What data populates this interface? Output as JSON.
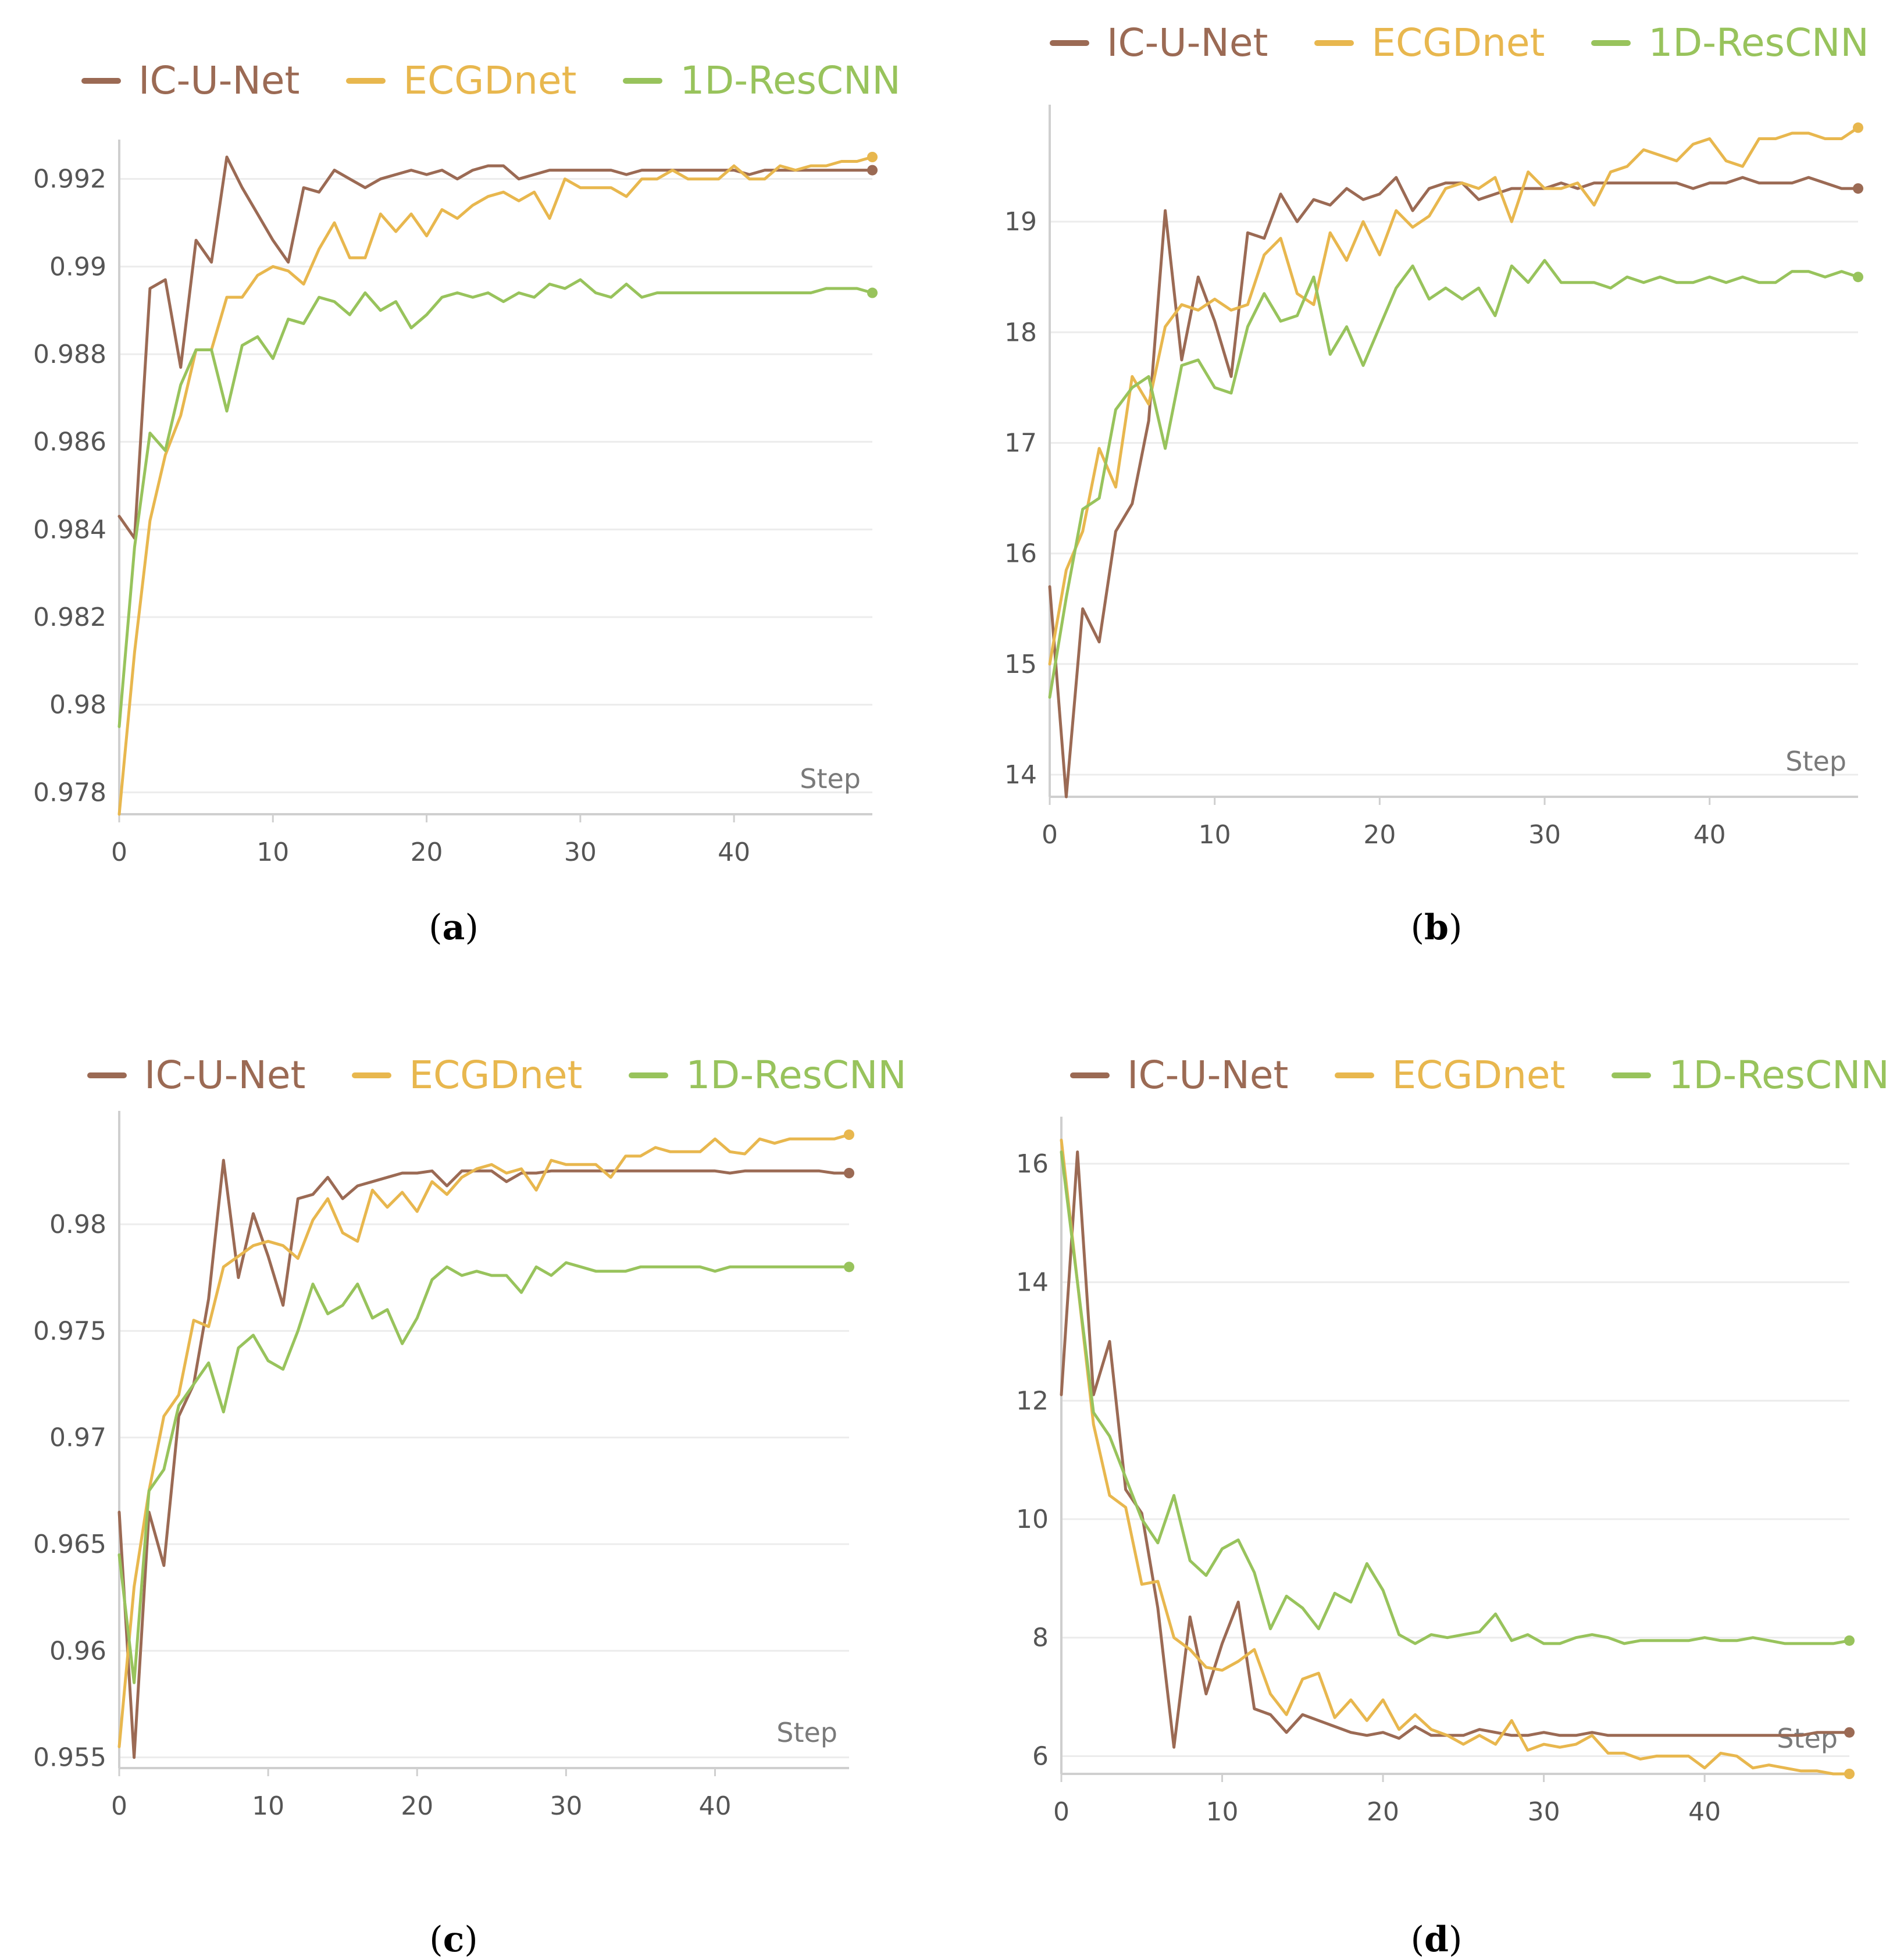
{
  "colors": {
    "ic_u_net": "#9b6a54",
    "ecgdnet": "#e8b74e",
    "resccn": "#98c35c",
    "grid": "#ececec",
    "axis": "#cfcfcf"
  },
  "chart_data": [
    {
      "id": "a",
      "caption": "a",
      "type": "line",
      "title": "",
      "xlabel": "Step",
      "ylabel": "",
      "xlim": [
        0,
        49
      ],
      "ylim": [
        0.9775,
        0.9925
      ],
      "xticks": [
        "0",
        "10",
        "20",
        "30",
        "40"
      ],
      "yticks": [
        "0.978",
        "0.98",
        "0.982",
        "0.984",
        "0.986",
        "0.988",
        "0.99",
        "0.992"
      ],
      "x": [
        0,
        1,
        2,
        3,
        4,
        5,
        6,
        7,
        8,
        9,
        10,
        11,
        12,
        13,
        14,
        15,
        16,
        17,
        18,
        19,
        20,
        21,
        22,
        23,
        24,
        25,
        26,
        27,
        28,
        29,
        30,
        31,
        32,
        33,
        34,
        35,
        36,
        37,
        38,
        39,
        40,
        41,
        42,
        43,
        44,
        45,
        46,
        47,
        48,
        49
      ],
      "series": [
        {
          "name": "IC-U-Net",
          "color_key": "ic_u_net",
          "values": [
            0.9843,
            0.9838,
            0.9895,
            0.9897,
            0.9877,
            0.9906,
            0.9901,
            0.9925,
            0.9918,
            0.9912,
            0.9906,
            0.9901,
            0.9918,
            0.9917,
            0.9922,
            0.992,
            0.9918,
            0.992,
            0.9921,
            0.9922,
            0.9921,
            0.9922,
            0.992,
            0.9922,
            0.9923,
            0.9923,
            0.992,
            0.9921,
            0.9922,
            0.9922,
            0.9922,
            0.9922,
            0.9922,
            0.9921,
            0.9922,
            0.9922,
            0.9922,
            0.9922,
            0.9922,
            0.9922,
            0.9922,
            0.9921,
            0.9922,
            0.9922,
            0.9922,
            0.9922,
            0.9922,
            0.9922,
            0.9922,
            0.9922
          ]
        },
        {
          "name": "ECGDnet",
          "color_key": "ecgdnet",
          "values": [
            0.9775,
            0.9812,
            0.9842,
            0.9857,
            0.9866,
            0.9881,
            0.9881,
            0.9893,
            0.9893,
            0.9898,
            0.99,
            0.9899,
            0.9896,
            0.9904,
            0.991,
            0.9902,
            0.9902,
            0.9912,
            0.9908,
            0.9912,
            0.9907,
            0.9913,
            0.9911,
            0.9914,
            0.9916,
            0.9917,
            0.9915,
            0.9917,
            0.9911,
            0.992,
            0.9918,
            0.9918,
            0.9918,
            0.9916,
            0.992,
            0.992,
            0.9922,
            0.992,
            0.992,
            0.992,
            0.9923,
            0.992,
            0.992,
            0.9923,
            0.9922,
            0.9923,
            0.9923,
            0.9924,
            0.9924,
            0.9925
          ]
        },
        {
          "name": "1D-ResCNN",
          "color_key": "resccn",
          "values": [
            0.9795,
            0.9836,
            0.9862,
            0.9858,
            0.9873,
            0.9881,
            0.9881,
            0.9867,
            0.9882,
            0.9884,
            0.9879,
            0.9888,
            0.9887,
            0.9893,
            0.9892,
            0.9889,
            0.9894,
            0.989,
            0.9892,
            0.9886,
            0.9889,
            0.9893,
            0.9894,
            0.9893,
            0.9894,
            0.9892,
            0.9894,
            0.9893,
            0.9896,
            0.9895,
            0.9897,
            0.9894,
            0.9893,
            0.9896,
            0.9893,
            0.9894,
            0.9894,
            0.9894,
            0.9894,
            0.9894,
            0.9894,
            0.9894,
            0.9894,
            0.9894,
            0.9894,
            0.9894,
            0.9895,
            0.9895,
            0.9895,
            0.9894
          ]
        }
      ]
    },
    {
      "id": "b",
      "caption": "b",
      "type": "line",
      "title": "",
      "xlabel": "Step",
      "ylabel": "",
      "xlim": [
        0,
        49
      ],
      "ylim": [
        13.8,
        19.9
      ],
      "xticks": [
        "0",
        "10",
        "20",
        "30",
        "40"
      ],
      "yticks": [
        "14",
        "15",
        "16",
        "17",
        "18",
        "19"
      ],
      "x": [
        0,
        1,
        2,
        3,
        4,
        5,
        6,
        7,
        8,
        9,
        10,
        11,
        12,
        13,
        14,
        15,
        16,
        17,
        18,
        19,
        20,
        21,
        22,
        23,
        24,
        25,
        26,
        27,
        28,
        29,
        30,
        31,
        32,
        33,
        34,
        35,
        36,
        37,
        38,
        39,
        40,
        41,
        42,
        43,
        44,
        45,
        46,
        47,
        48,
        49
      ],
      "series": [
        {
          "name": "IC-U-Net",
          "color_key": "ic_u_net",
          "values": [
            15.7,
            13.8,
            15.5,
            15.2,
            16.2,
            16.45,
            17.2,
            19.1,
            17.75,
            18.5,
            18.1,
            17.6,
            18.9,
            18.85,
            19.25,
            19.0,
            19.2,
            19.15,
            19.3,
            19.2,
            19.25,
            19.4,
            19.1,
            19.3,
            19.35,
            19.35,
            19.2,
            19.25,
            19.3,
            19.3,
            19.3,
            19.35,
            19.3,
            19.35,
            19.35,
            19.35,
            19.35,
            19.35,
            19.35,
            19.3,
            19.35,
            19.35,
            19.4,
            19.35,
            19.35,
            19.35,
            19.4,
            19.35,
            19.3,
            19.3
          ]
        },
        {
          "name": "ECGDnet",
          "color_key": "ecgdnet",
          "values": [
            15.0,
            15.85,
            16.2,
            16.95,
            16.6,
            17.6,
            17.35,
            18.05,
            18.25,
            18.2,
            18.3,
            18.2,
            18.25,
            18.7,
            18.85,
            18.35,
            18.25,
            18.9,
            18.65,
            19.0,
            18.7,
            19.1,
            18.95,
            19.05,
            19.3,
            19.35,
            19.3,
            19.4,
            19.0,
            19.45,
            19.3,
            19.3,
            19.35,
            19.15,
            19.45,
            19.5,
            19.65,
            19.6,
            19.55,
            19.7,
            19.75,
            19.55,
            19.5,
            19.75,
            19.75,
            19.8,
            19.8,
            19.75,
            19.75,
            19.85
          ]
        },
        {
          "name": "1D-ResCNN",
          "color_key": "resccn",
          "values": [
            14.7,
            15.6,
            16.4,
            16.5,
            17.3,
            17.5,
            17.6,
            16.95,
            17.7,
            17.75,
            17.5,
            17.45,
            18.05,
            18.35,
            18.1,
            18.15,
            18.5,
            17.8,
            18.05,
            17.7,
            18.05,
            18.4,
            18.6,
            18.3,
            18.4,
            18.3,
            18.4,
            18.15,
            18.6,
            18.45,
            18.65,
            18.45,
            18.45,
            18.45,
            18.4,
            18.5,
            18.45,
            18.5,
            18.45,
            18.45,
            18.5,
            18.45,
            18.5,
            18.45,
            18.45,
            18.55,
            18.55,
            18.5,
            18.55,
            18.5
          ]
        }
      ]
    },
    {
      "id": "c",
      "caption": "c",
      "type": "line",
      "title": "",
      "xlabel": "Step",
      "ylabel": "",
      "xlim": [
        0,
        49
      ],
      "ylim": [
        0.9545,
        0.9845
      ],
      "xticks": [
        "0",
        "10",
        "20",
        "30",
        "40"
      ],
      "yticks": [
        "0.955",
        "0.96",
        "0.965",
        "0.97",
        "0.975",
        "0.98"
      ],
      "x": [
        0,
        1,
        2,
        3,
        4,
        5,
        6,
        7,
        8,
        9,
        10,
        11,
        12,
        13,
        14,
        15,
        16,
        17,
        18,
        19,
        20,
        21,
        22,
        23,
        24,
        25,
        26,
        27,
        28,
        29,
        30,
        31,
        32,
        33,
        34,
        35,
        36,
        37,
        38,
        39,
        40,
        41,
        42,
        43,
        44,
        45,
        46,
        47,
        48,
        49
      ],
      "series": [
        {
          "name": "IC-U-Net",
          "color_key": "ic_u_net",
          "values": [
            0.9665,
            0.955,
            0.9665,
            0.964,
            0.971,
            0.9725,
            0.9765,
            0.983,
            0.9775,
            0.9805,
            0.9785,
            0.9762,
            0.9812,
            0.9814,
            0.9822,
            0.9812,
            0.9818,
            0.982,
            0.9822,
            0.9824,
            0.9824,
            0.9825,
            0.9818,
            0.9825,
            0.9825,
            0.9825,
            0.982,
            0.9824,
            0.9824,
            0.9825,
            0.9825,
            0.9825,
            0.9825,
            0.9825,
            0.9825,
            0.9825,
            0.9825,
            0.9825,
            0.9825,
            0.9825,
            0.9825,
            0.9824,
            0.9825,
            0.9825,
            0.9825,
            0.9825,
            0.9825,
            0.9825,
            0.9824,
            0.9824
          ]
        },
        {
          "name": "ECGDnet",
          "color_key": "ecgdnet",
          "values": [
            0.9555,
            0.963,
            0.9675,
            0.971,
            0.972,
            0.9755,
            0.9752,
            0.978,
            0.9785,
            0.979,
            0.9792,
            0.979,
            0.9784,
            0.9802,
            0.9812,
            0.9796,
            0.9792,
            0.9816,
            0.9808,
            0.9815,
            0.9806,
            0.982,
            0.9814,
            0.9822,
            0.9826,
            0.9828,
            0.9824,
            0.9826,
            0.9816,
            0.983,
            0.9828,
            0.9828,
            0.9828,
            0.9822,
            0.9832,
            0.9832,
            0.9836,
            0.9834,
            0.9834,
            0.9834,
            0.984,
            0.9834,
            0.9833,
            0.984,
            0.9838,
            0.984,
            0.984,
            0.984,
            0.984,
            0.9842
          ]
        },
        {
          "name": "1D-ResCNN",
          "color_key": "resccn",
          "values": [
            0.9645,
            0.9585,
            0.9675,
            0.9685,
            0.9715,
            0.9725,
            0.9735,
            0.9712,
            0.9742,
            0.9748,
            0.9736,
            0.9732,
            0.975,
            0.9772,
            0.9758,
            0.9762,
            0.9772,
            0.9756,
            0.976,
            0.9744,
            0.9756,
            0.9774,
            0.978,
            0.9776,
            0.9778,
            0.9776,
            0.9776,
            0.9768,
            0.978,
            0.9776,
            0.9782,
            0.978,
            0.9778,
            0.9778,
            0.9778,
            0.978,
            0.978,
            0.978,
            0.978,
            0.978,
            0.9778,
            0.978,
            0.978,
            0.978,
            0.978,
            0.978,
            0.978,
            0.978,
            0.978,
            0.978
          ]
        }
      ]
    },
    {
      "id": "d",
      "caption": "d",
      "type": "line",
      "title": "",
      "xlabel": "Step",
      "ylabel": "",
      "xlim": [
        0,
        49
      ],
      "ylim": [
        5.7,
        16.5
      ],
      "xticks": [
        "0",
        "10",
        "20",
        "30",
        "40"
      ],
      "yticks": [
        "6",
        "8",
        "10",
        "12",
        "14",
        "16"
      ],
      "x": [
        0,
        1,
        2,
        3,
        4,
        5,
        6,
        7,
        8,
        9,
        10,
        11,
        12,
        13,
        14,
        15,
        16,
        17,
        18,
        19,
        20,
        21,
        22,
        23,
        24,
        25,
        26,
        27,
        28,
        29,
        30,
        31,
        32,
        33,
        34,
        35,
        36,
        37,
        38,
        39,
        40,
        41,
        42,
        43,
        44,
        45,
        46,
        47,
        48,
        49
      ],
      "series": [
        {
          "name": "IC-U-Net",
          "color_key": "ic_u_net",
          "values": [
            12.1,
            16.2,
            12.1,
            13.0,
            10.5,
            10.1,
            8.5,
            6.15,
            8.35,
            7.05,
            7.9,
            8.6,
            6.8,
            6.7,
            6.4,
            6.7,
            6.6,
            6.5,
            6.4,
            6.35,
            6.4,
            6.3,
            6.5,
            6.35,
            6.35,
            6.35,
            6.45,
            6.4,
            6.35,
            6.35,
            6.4,
            6.35,
            6.35,
            6.4,
            6.35,
            6.35,
            6.35,
            6.35,
            6.35,
            6.35,
            6.35,
            6.35,
            6.35,
            6.35,
            6.35,
            6.35,
            6.35,
            6.4,
            6.4,
            6.4
          ]
        },
        {
          "name": "ECGDnet",
          "color_key": "ecgdnet",
          "values": [
            16.4,
            14.0,
            11.6,
            10.4,
            10.2,
            8.9,
            8.95,
            8.0,
            7.8,
            7.5,
            7.45,
            7.6,
            7.8,
            7.05,
            6.7,
            7.3,
            7.4,
            6.65,
            6.95,
            6.6,
            6.95,
            6.45,
            6.7,
            6.45,
            6.35,
            6.2,
            6.35,
            6.2,
            6.6,
            6.1,
            6.2,
            6.15,
            6.2,
            6.35,
            6.05,
            6.05,
            5.95,
            6.0,
            6.0,
            6.0,
            5.8,
            6.05,
            6.0,
            5.8,
            5.85,
            5.8,
            5.75,
            5.75,
            5.7,
            5.7
          ]
        },
        {
          "name": "1D-ResCNN",
          "color_key": "resccn",
          "values": [
            16.2,
            14.0,
            11.8,
            11.4,
            10.7,
            10.0,
            9.6,
            10.4,
            9.3,
            9.05,
            9.5,
            9.65,
            9.1,
            8.15,
            8.7,
            8.5,
            8.15,
            8.75,
            8.6,
            9.25,
            8.8,
            8.05,
            7.9,
            8.05,
            8.0,
            8.05,
            8.1,
            8.4,
            7.95,
            8.05,
            7.9,
            7.9,
            8.0,
            8.05,
            8.0,
            7.9,
            7.95,
            7.95,
            7.95,
            7.95,
            8.0,
            7.95,
            7.95,
            8.0,
            7.95,
            7.9,
            7.9,
            7.9,
            7.9,
            7.95
          ]
        }
      ]
    }
  ]
}
